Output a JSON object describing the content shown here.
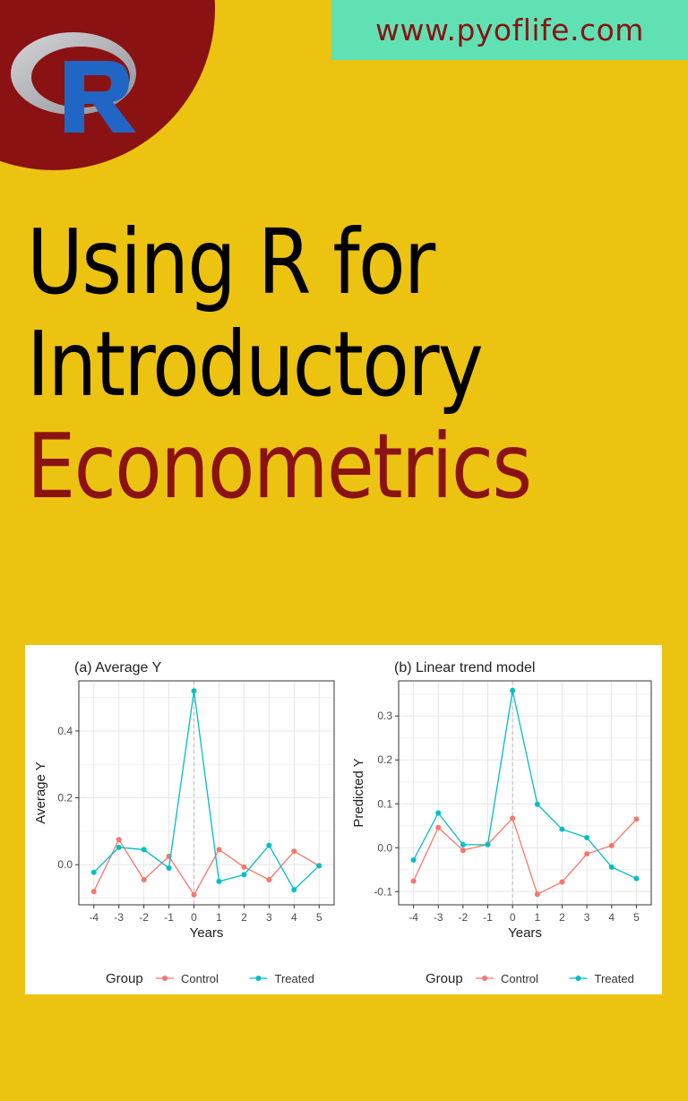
{
  "header": {
    "url": "www.pyoflife.com",
    "logo": "r-logo-icon"
  },
  "title": {
    "line1": "Using R for",
    "line2": "Introductory",
    "line3": "Econometrics"
  },
  "colors": {
    "background": "#ecc310",
    "accent_red": "#8b1212",
    "url_box": "#5fe1b4",
    "control": "#f8766d",
    "treated": "#00bfc4"
  },
  "chart_data": [
    {
      "type": "line",
      "title": "(a) Average Y",
      "xlabel": "Years",
      "ylabel": "Average Y",
      "x": [
        -4,
        -3,
        -2,
        -1,
        0,
        1,
        2,
        3,
        4,
        5
      ],
      "ylim": [
        -0.12,
        0.55
      ],
      "yticks": [
        0.0,
        0.2,
        0.4
      ],
      "ytick_labels": [
        "0.0",
        "0.2",
        "0.4"
      ],
      "grid": true,
      "vline": 0,
      "legend": {
        "title": "Group",
        "position": "bottom",
        "entries": [
          "Control",
          "Treated"
        ]
      },
      "series": [
        {
          "name": "Control",
          "values": [
            -0.08,
            0.075,
            -0.045,
            0.025,
            -0.09,
            0.045,
            -0.007,
            -0.045,
            0.04,
            -0.003
          ]
        },
        {
          "name": "Treated",
          "values": [
            -0.023,
            0.052,
            0.045,
            -0.01,
            0.52,
            -0.05,
            -0.03,
            0.058,
            -0.075,
            -0.003
          ]
        }
      ]
    },
    {
      "type": "line",
      "title": "(b) Linear trend model",
      "xlabel": "Years",
      "ylabel": "Predicted Y",
      "x": [
        -4,
        -3,
        -2,
        -1,
        0,
        1,
        2,
        3,
        4,
        5
      ],
      "ylim": [
        -0.13,
        0.38
      ],
      "yticks": [
        -0.1,
        0.0,
        0.1,
        0.2,
        0.3
      ],
      "ytick_labels": [
        "-0.1",
        "0.0",
        "0.1",
        "0.2",
        "0.3"
      ],
      "grid": true,
      "vline": 0,
      "legend": {
        "title": "Group",
        "position": "bottom",
        "entries": [
          "Control",
          "Treated"
        ]
      },
      "series": [
        {
          "name": "Control",
          "values": [
            -0.076,
            0.046,
            -0.006,
            0.008,
            0.067,
            -0.106,
            -0.078,
            -0.014,
            0.005,
            0.065
          ]
        },
        {
          "name": "Treated",
          "values": [
            -0.028,
            0.079,
            0.007,
            0.007,
            0.358,
            0.099,
            0.042,
            0.023,
            -0.044,
            -0.07
          ]
        }
      ]
    }
  ]
}
